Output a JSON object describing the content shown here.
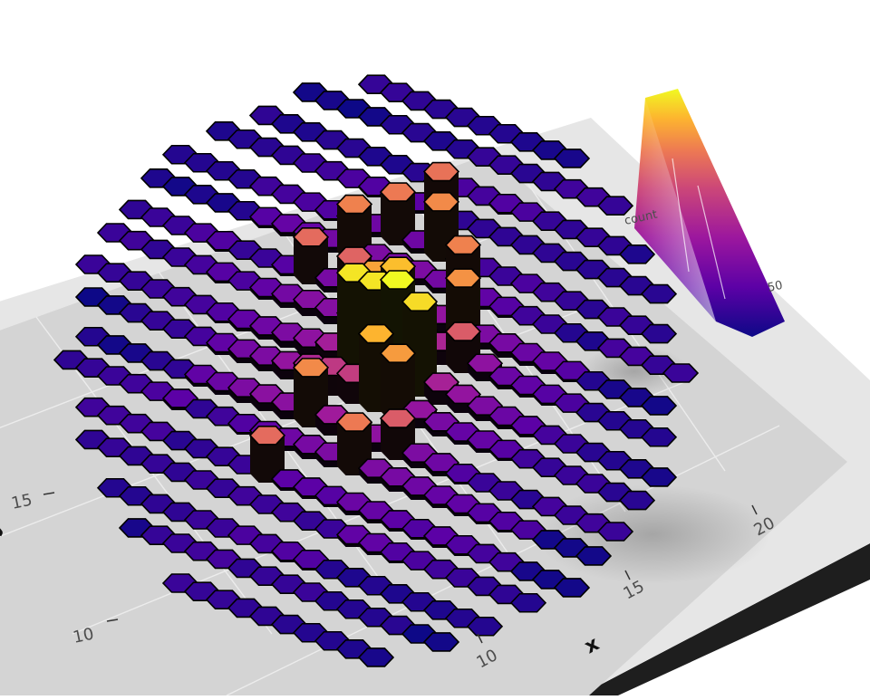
{
  "chart_data": {
    "type": "heatmap",
    "variant": "3d-hexbin",
    "xlabel": "x",
    "ylabel": "y",
    "x_ticks": [
      "10",
      "15",
      "20"
    ],
    "y_ticks": [
      "10",
      "15"
    ],
    "legend_title": "count",
    "legend_tick_visible": "50",
    "legend_position": "top-right",
    "palette": [
      "#0d0887",
      "#5c01a6",
      "#9c179e",
      "#cc4778",
      "#ed7953",
      "#fdb42f",
      "#f0f921"
    ],
    "grid": true,
    "bins": [
      {
        "r": 0,
        "c": 0,
        "v": 80
      },
      {
        "r": 0,
        "c": 1,
        "v": 84
      },
      {
        "r": 0,
        "c": 2,
        "v": 78
      },
      {
        "r": 0,
        "c": -1,
        "v": 80
      },
      {
        "r": 1,
        "c": 0,
        "v": 70
      },
      {
        "r": -1,
        "c": 0,
        "v": 72
      },
      {
        "r": 1,
        "c": 1,
        "v": 64
      },
      {
        "r": -1,
        "c": -1,
        "v": 66
      },
      {
        "r": -2,
        "c": 3,
        "v": 62
      },
      {
        "r": -3,
        "c": 2,
        "v": 58
      },
      {
        "r": 2,
        "c": -2,
        "v": 60
      },
      {
        "r": 3,
        "c": 0,
        "v": 56
      },
      {
        "r": -4,
        "c": 1,
        "v": 60
      },
      {
        "r": -4,
        "c": -1,
        "v": 56
      },
      {
        "r": -3,
        "c": -3,
        "v": 58
      },
      {
        "r": 4,
        "c": -3,
        "v": 52
      },
      {
        "r": -5,
        "c": 0,
        "v": 54
      },
      {
        "r": -2,
        "c": -2,
        "v": 50
      },
      {
        "r": -1,
        "c": 3,
        "v": 48
      },
      {
        "r": 2,
        "c": 2,
        "v": 48
      },
      {
        "r": -2,
        "c": -4,
        "v": 52
      }
    ]
  }
}
